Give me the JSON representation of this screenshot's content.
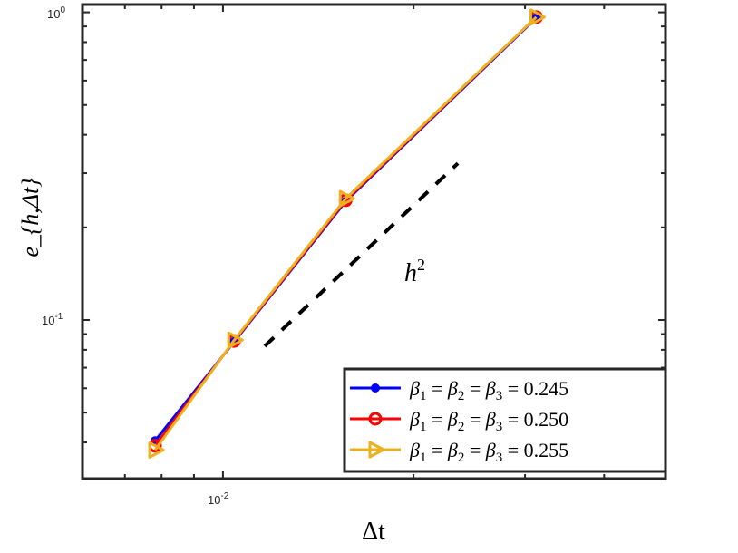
{
  "chart_data": {
    "type": "line",
    "title": "",
    "xlabel": "Δt",
    "ylabel": "e_{h,Δt}",
    "xscale": "log",
    "yscale": "log",
    "xlim": [
      0.006,
      0.05
    ],
    "ylim": [
      0.0305,
      1.06
    ],
    "grid": false,
    "legend_position": "bottom-right",
    "x_tick_labels": [
      {
        "value": 0.01,
        "base": "10",
        "exp": "-2"
      }
    ],
    "y_tick_labels": [
      {
        "value": 1,
        "base": "10",
        "exp": "0"
      },
      {
        "value": 0.1,
        "base": "10",
        "exp": "-1"
      }
    ],
    "x": [
      0.0078125,
      0.0104167,
      0.015625,
      0.03125
    ],
    "series": [
      {
        "name": "β1 = β2 = β3 = 0.245",
        "values": [
          0.0405,
          0.085,
          0.243,
          0.96
        ],
        "color": "#0000ff",
        "marker": "dot"
      },
      {
        "name": "β1 = β2 = β3 = 0.250",
        "values": [
          0.039,
          0.0855,
          0.245,
          0.965
        ],
        "color": "#ff0000",
        "marker": "circle"
      },
      {
        "name": "β1 = β2 = β3 = 0.255",
        "values": [
          0.0378,
          0.086,
          0.248,
          0.965
        ],
        "color": "#edb120",
        "marker": "triangle-right"
      }
    ],
    "legend_entries": [
      {
        "beta1": "β",
        "s1": "1",
        "beta2": "β",
        "s2": "2",
        "beta3": "β",
        "s3": "3",
        "value": "0.245"
      },
      {
        "beta1": "β",
        "s1": "1",
        "beta2": "β",
        "s2": "2",
        "beta3": "β",
        "s3": "3",
        "value": "0.250"
      },
      {
        "beta1": "β",
        "s1": "1",
        "beta2": "β",
        "s2": "2",
        "beta3": "β",
        "s3": "3",
        "value": "0.255"
      }
    ],
    "reference_line": {
      "label_base": "h",
      "label_exp": "2",
      "x": [
        0.01164,
        0.0235
      ],
      "y": [
        0.0822,
        0.323
      ],
      "style": "dashed",
      "color": "#000000"
    }
  }
}
